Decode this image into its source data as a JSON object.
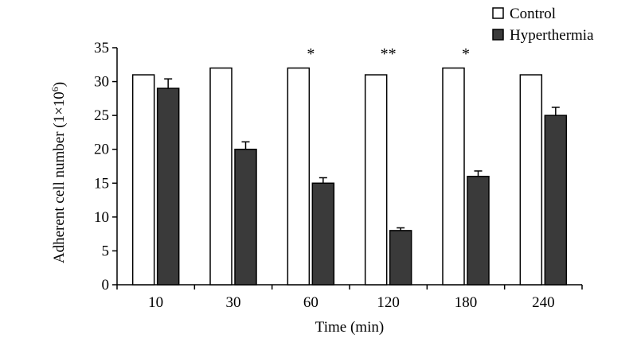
{
  "chart_data": {
    "type": "bar",
    "title": "",
    "xlabel": "Time (min)",
    "ylabel_main": "Adherent cell number (1×10",
    "ylabel_sup": "6",
    "ylabel_close": ")",
    "ylim": [
      0,
      35
    ],
    "yticks": [
      0,
      5,
      10,
      15,
      20,
      25,
      30,
      35
    ],
    "categories": [
      "10",
      "30",
      "60",
      "120",
      "180",
      "240"
    ],
    "series": [
      {
        "name": "Control",
        "color": "#ffffff",
        "values": [
          31,
          32,
          32,
          31,
          32,
          31
        ],
        "errors": [
          0,
          0,
          0,
          0,
          0,
          0
        ]
      },
      {
        "name": "Hyperthermia",
        "color": "#3a3a3a",
        "values": [
          29,
          20,
          15,
          8,
          16,
          25
        ],
        "errors": [
          1.4,
          1.1,
          0.8,
          0.4,
          0.8,
          1.2
        ]
      }
    ],
    "annotations": [
      "",
      "",
      "*",
      "**",
      "*",
      ""
    ],
    "legend_position": "top-right",
    "grid": false
  }
}
